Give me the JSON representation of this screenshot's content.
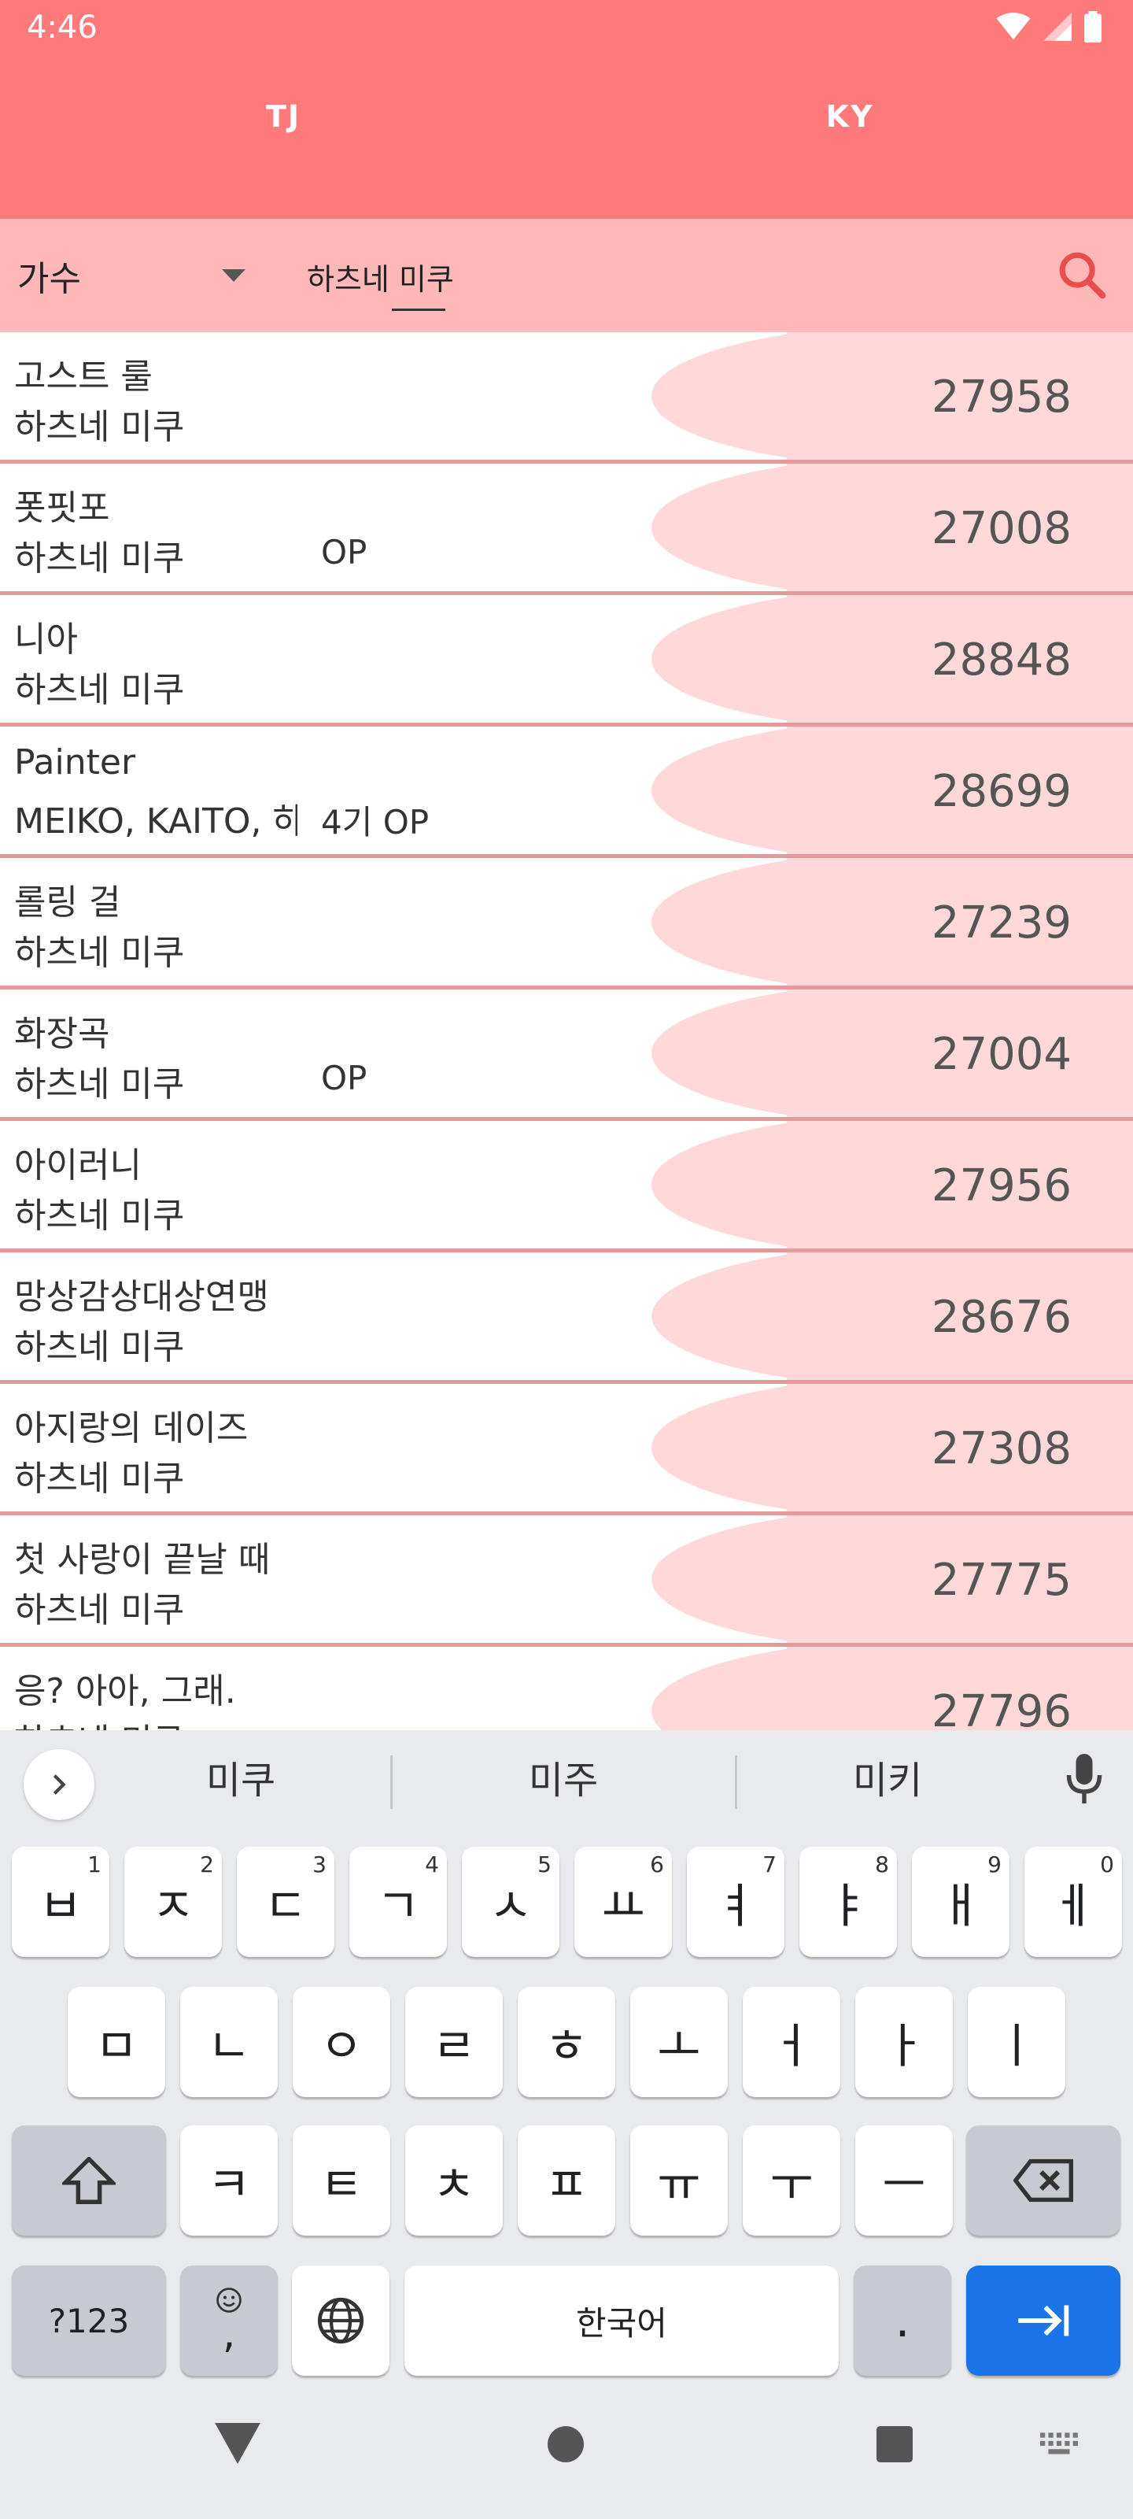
{
  "status_bar": {
    "time": "4:46"
  },
  "tabs": [
    {
      "label": "TJ"
    },
    {
      "label": "KY"
    }
  ],
  "search": {
    "category": "가수",
    "query": "하츠네 미쿠"
  },
  "songs": [
    {
      "title": "고스트 룰",
      "artist": "하츠네 미쿠",
      "note": "",
      "number": "27958"
    },
    {
      "title": "폿핏포",
      "artist": "하츠네 미쿠",
      "note": "OP",
      "number": "27008"
    },
    {
      "title": "니아",
      "artist": "하츠네 미쿠",
      "note": "",
      "number": "28848"
    },
    {
      "title": "Painter",
      "artist": "MEIKO, KAITO, 하",
      "note": "4기 OP",
      "number": "28699"
    },
    {
      "title": "롤링 걸",
      "artist": "하츠네 미쿠",
      "note": "",
      "number": "27239"
    },
    {
      "title": "화장곡",
      "artist": "하츠네 미쿠",
      "note": "OP",
      "number": "27004"
    },
    {
      "title": "아이러니",
      "artist": "하츠네 미쿠",
      "note": "",
      "number": "27956"
    },
    {
      "title": "망상감상대상연맹",
      "artist": "하츠네 미쿠",
      "note": "",
      "number": "28676"
    },
    {
      "title": "아지랑의 데이즈",
      "artist": "하츠네 미쿠",
      "note": "",
      "number": "27308"
    },
    {
      "title": "첫 사랑이 끝날 때",
      "artist": "하츠네 미쿠",
      "note": "",
      "number": "27775"
    },
    {
      "title": "응? 아아, 그래.",
      "artist": "하츠네 미쿠",
      "note": "",
      "number": "27796"
    }
  ],
  "keyboard": {
    "suggestions": [
      "미쿠",
      "미주",
      "미키"
    ],
    "row1": [
      {
        "label": "ㅂ",
        "hint": "1"
      },
      {
        "label": "ㅈ",
        "hint": "2"
      },
      {
        "label": "ㄷ",
        "hint": "3"
      },
      {
        "label": "ㄱ",
        "hint": "4"
      },
      {
        "label": "ㅅ",
        "hint": "5"
      },
      {
        "label": "ㅛ",
        "hint": "6"
      },
      {
        "label": "ㅕ",
        "hint": "7"
      },
      {
        "label": "ㅑ",
        "hint": "8"
      },
      {
        "label": "ㅐ",
        "hint": "9"
      },
      {
        "label": "ㅔ",
        "hint": "0"
      }
    ],
    "row2": [
      "ㅁ",
      "ㄴ",
      "ㅇ",
      "ㄹ",
      "ㅎ",
      "ㅗ",
      "ㅓ",
      "ㅏ",
      "ㅣ"
    ],
    "row3": [
      "ㅋ",
      "ㅌ",
      "ㅊ",
      "ㅍ",
      "ㅠ",
      "ㅜ",
      "ㅡ"
    ],
    "symbols_label": "?123",
    "emoji_comma_label": ",",
    "space_label": "한국어",
    "period_label": "."
  }
}
